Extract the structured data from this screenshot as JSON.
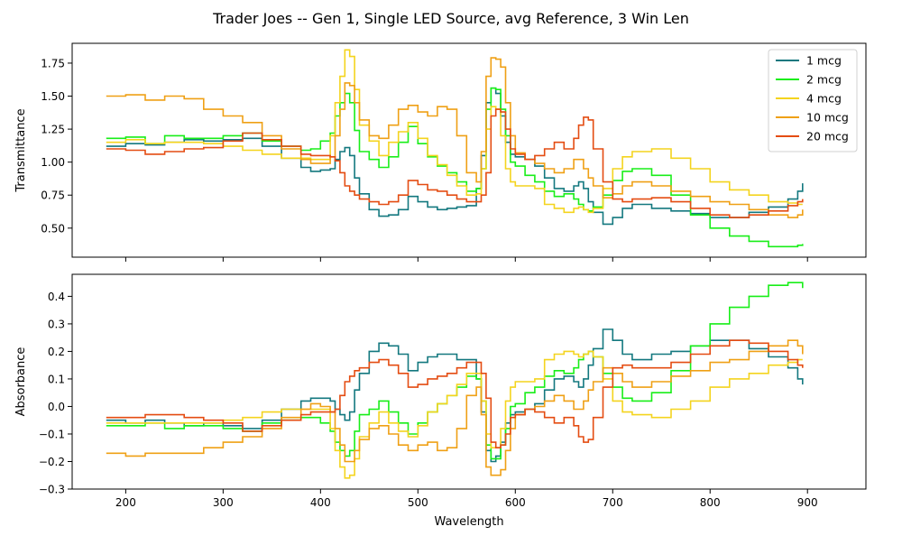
{
  "title": "Trader Joes -- Gen 1, Single LED Source, avg Reference, 3 Win Len",
  "colors": {
    "1 mcg": "#13787f",
    "2 mcg": "#18ee18",
    "4 mcg": "#f4d41e",
    "10 mcg": "#efa015",
    "20 mcg": "#e44c12"
  },
  "chart_data": [
    {
      "type": "line",
      "ylabel": "Transmittance",
      "xlabel": "",
      "xlim": [
        145,
        960
      ],
      "ylim": [
        0.28,
        1.9
      ],
      "xticks": [
        200,
        300,
        400,
        500,
        600,
        700,
        800,
        900
      ],
      "yticks": [
        0.5,
        0.75,
        1.0,
        1.25,
        1.5,
        1.75
      ],
      "ytick_labels": [
        "0.50",
        "0.75",
        "1.00",
        "1.25",
        "1.50",
        "1.75"
      ],
      "show_xtick_labels": false,
      "grid": false,
      "legend": "top-right",
      "x": [
        180,
        200,
        220,
        240,
        260,
        280,
        300,
        320,
        340,
        360,
        380,
        390,
        400,
        410,
        415,
        420,
        425,
        430,
        435,
        440,
        450,
        460,
        470,
        480,
        490,
        500,
        510,
        520,
        530,
        540,
        550,
        560,
        565,
        570,
        575,
        580,
        585,
        590,
        595,
        600,
        610,
        620,
        630,
        640,
        650,
        660,
        665,
        670,
        675,
        680,
        690,
        700,
        710,
        720,
        740,
        760,
        780,
        800,
        820,
        840,
        860,
        880,
        890,
        895
      ],
      "series": [
        {
          "name": "1 mcg",
          "values": [
            1.12,
            1.14,
            1.13,
            1.15,
            1.17,
            1.16,
            1.17,
            1.18,
            1.12,
            1.03,
            0.96,
            0.93,
            0.94,
            0.95,
            1.02,
            1.08,
            1.11,
            1.05,
            0.88,
            0.76,
            0.64,
            0.59,
            0.6,
            0.64,
            0.74,
            0.7,
            0.66,
            0.64,
            0.65,
            0.66,
            0.67,
            0.8,
            1.05,
            1.45,
            1.56,
            1.52,
            1.35,
            1.15,
            1.06,
            1.04,
            1.02,
            0.97,
            0.88,
            0.8,
            0.78,
            0.82,
            0.85,
            0.8,
            0.7,
            0.62,
            0.53,
            0.58,
            0.65,
            0.68,
            0.65,
            0.63,
            0.61,
            0.58,
            0.58,
            0.62,
            0.66,
            0.72,
            0.78,
            0.84
          ]
        },
        {
          "name": "2 mcg",
          "values": [
            1.18,
            1.19,
            1.14,
            1.2,
            1.18,
            1.18,
            1.2,
            1.22,
            1.16,
            1.12,
            1.09,
            1.1,
            1.16,
            1.22,
            1.35,
            1.45,
            1.52,
            1.45,
            1.24,
            1.08,
            1.02,
            0.96,
            1.04,
            1.15,
            1.27,
            1.14,
            1.04,
            0.97,
            0.92,
            0.85,
            0.78,
            0.8,
            0.95,
            1.4,
            1.56,
            1.55,
            1.4,
            1.2,
            1.0,
            0.97,
            0.9,
            0.85,
            0.78,
            0.74,
            0.76,
            0.72,
            0.68,
            0.64,
            0.63,
            0.66,
            0.75,
            0.86,
            0.93,
            0.95,
            0.9,
            0.75,
            0.6,
            0.5,
            0.44,
            0.4,
            0.36,
            0.36,
            0.37,
            0.38
          ]
        },
        {
          "name": "4 mcg",
          "values": [
            1.15,
            1.17,
            1.14,
            1.15,
            1.15,
            1.14,
            1.12,
            1.09,
            1.06,
            1.03,
            1.03,
            1.02,
            1.02,
            1.2,
            1.45,
            1.65,
            1.85,
            1.8,
            1.55,
            1.28,
            1.16,
            1.05,
            1.15,
            1.23,
            1.3,
            1.18,
            1.05,
            0.98,
            0.9,
            0.82,
            0.75,
            0.76,
            0.95,
            1.25,
            1.42,
            1.4,
            1.2,
            0.95,
            0.85,
            0.82,
            0.82,
            0.8,
            0.68,
            0.65,
            0.62,
            0.65,
            0.66,
            0.64,
            0.62,
            0.65,
            0.8,
            0.95,
            1.04,
            1.08,
            1.1,
            1.03,
            0.95,
            0.85,
            0.79,
            0.75,
            0.7,
            0.69,
            0.68,
            0.68
          ]
        },
        {
          "name": "10 mcg",
          "values": [
            1.5,
            1.51,
            1.47,
            1.5,
            1.48,
            1.4,
            1.35,
            1.3,
            1.2,
            1.1,
            1.02,
            0.99,
            0.99,
            1.04,
            1.2,
            1.4,
            1.6,
            1.58,
            1.45,
            1.32,
            1.2,
            1.18,
            1.28,
            1.4,
            1.43,
            1.38,
            1.35,
            1.42,
            1.4,
            1.2,
            0.92,
            0.85,
            1.08,
            1.65,
            1.79,
            1.78,
            1.72,
            1.45,
            1.2,
            1.07,
            1.02,
            0.99,
            0.95,
            0.92,
            0.95,
            1.02,
            1.02,
            0.95,
            0.88,
            0.82,
            0.73,
            0.76,
            0.82,
            0.85,
            0.82,
            0.78,
            0.74,
            0.7,
            0.68,
            0.64,
            0.6,
            0.58,
            0.6,
            0.64
          ]
        },
        {
          "name": "20 mcg",
          "values": [
            1.1,
            1.09,
            1.06,
            1.08,
            1.1,
            1.11,
            1.16,
            1.22,
            1.17,
            1.12,
            1.06,
            1.05,
            1.05,
            1.04,
            1.01,
            0.92,
            0.82,
            0.78,
            0.75,
            0.72,
            0.7,
            0.68,
            0.7,
            0.75,
            0.86,
            0.83,
            0.79,
            0.78,
            0.75,
            0.72,
            0.7,
            0.7,
            0.75,
            0.92,
            1.35,
            1.4,
            1.38,
            1.25,
            1.1,
            1.06,
            1.02,
            1.05,
            1.1,
            1.15,
            1.1,
            1.18,
            1.28,
            1.34,
            1.32,
            1.1,
            0.85,
            0.72,
            0.7,
            0.72,
            0.73,
            0.7,
            0.65,
            0.6,
            0.58,
            0.6,
            0.63,
            0.67,
            0.7,
            0.72
          ]
        }
      ]
    },
    {
      "type": "line",
      "ylabel": "Absorbance",
      "xlabel": "Wavelength",
      "xlim": [
        145,
        960
      ],
      "ylim": [
        -0.3,
        0.48
      ],
      "xticks": [
        200,
        300,
        400,
        500,
        600,
        700,
        800,
        900
      ],
      "yticks": [
        -0.3,
        -0.2,
        -0.1,
        0.0,
        0.1,
        0.2,
        0.3,
        0.4
      ],
      "ytick_labels": [
        "−0.3",
        "−0.2",
        "−0.1",
        "0.0",
        "0.1",
        "0.2",
        "0.3",
        "0.4"
      ],
      "show_xtick_labels": true,
      "grid": false,
      "legend": "none",
      "x": [
        180,
        200,
        220,
        240,
        260,
        280,
        300,
        320,
        340,
        360,
        380,
        390,
        400,
        410,
        415,
        420,
        425,
        430,
        435,
        440,
        450,
        460,
        470,
        480,
        490,
        500,
        510,
        520,
        530,
        540,
        550,
        560,
        565,
        570,
        575,
        580,
        585,
        590,
        595,
        600,
        610,
        620,
        630,
        640,
        650,
        660,
        665,
        670,
        675,
        680,
        690,
        700,
        710,
        720,
        740,
        760,
        780,
        800,
        820,
        840,
        860,
        880,
        890,
        895
      ],
      "series": [
        {
          "name": "1 mcg",
          "values": [
            -0.05,
            -0.06,
            -0.05,
            -0.06,
            -0.07,
            -0.06,
            -0.07,
            -0.08,
            -0.05,
            -0.01,
            0.02,
            0.03,
            0.03,
            0.02,
            -0.01,
            -0.03,
            -0.05,
            -0.02,
            0.06,
            0.12,
            0.2,
            0.23,
            0.22,
            0.19,
            0.13,
            0.16,
            0.18,
            0.19,
            0.19,
            0.17,
            0.17,
            0.1,
            -0.02,
            -0.16,
            -0.2,
            -0.18,
            -0.13,
            -0.06,
            -0.03,
            -0.02,
            -0.01,
            0.01,
            0.06,
            0.1,
            0.11,
            0.09,
            0.07,
            0.1,
            0.15,
            0.21,
            0.28,
            0.24,
            0.19,
            0.17,
            0.19,
            0.2,
            0.22,
            0.24,
            0.24,
            0.21,
            0.18,
            0.14,
            0.1,
            0.08
          ]
        },
        {
          "name": "2 mcg",
          "values": [
            -0.07,
            -0.07,
            -0.06,
            -0.08,
            -0.07,
            -0.07,
            -0.08,
            -0.09,
            -0.06,
            -0.05,
            -0.04,
            -0.04,
            -0.06,
            -0.09,
            -0.13,
            -0.16,
            -0.18,
            -0.16,
            -0.09,
            -0.03,
            -0.01,
            0.02,
            -0.02,
            -0.06,
            -0.1,
            -0.06,
            -0.02,
            0.01,
            0.04,
            0.07,
            0.11,
            0.1,
            0.02,
            -0.14,
            -0.19,
            -0.19,
            -0.14,
            -0.08,
            0.0,
            0.01,
            0.05,
            0.07,
            0.11,
            0.13,
            0.12,
            0.14,
            0.17,
            0.19,
            0.2,
            0.18,
            0.12,
            0.07,
            0.03,
            0.02,
            0.05,
            0.13,
            0.22,
            0.3,
            0.36,
            0.4,
            0.44,
            0.45,
            0.45,
            0.43
          ]
        },
        {
          "name": "4 mcg",
          "values": [
            -0.06,
            -0.06,
            -0.06,
            -0.06,
            -0.06,
            -0.06,
            -0.05,
            -0.04,
            -0.02,
            -0.01,
            -0.01,
            -0.01,
            -0.01,
            -0.08,
            -0.16,
            -0.22,
            -0.26,
            -0.25,
            -0.19,
            -0.11,
            -0.06,
            -0.02,
            -0.06,
            -0.09,
            -0.11,
            -0.07,
            -0.02,
            0.01,
            0.04,
            0.08,
            0.12,
            0.12,
            0.02,
            -0.1,
            -0.15,
            -0.15,
            -0.08,
            0.02,
            0.07,
            0.09,
            0.09,
            0.1,
            0.17,
            0.19,
            0.2,
            0.19,
            0.18,
            0.19,
            0.2,
            0.18,
            0.1,
            0.02,
            -0.02,
            -0.03,
            -0.04,
            -0.01,
            0.02,
            0.07,
            0.1,
            0.12,
            0.15,
            0.16,
            0.17,
            0.17
          ]
        },
        {
          "name": "10 mcg",
          "values": [
            -0.17,
            -0.18,
            -0.17,
            -0.17,
            -0.17,
            -0.15,
            -0.13,
            -0.11,
            -0.08,
            -0.04,
            -0.01,
            0.01,
            0.0,
            -0.02,
            -0.08,
            -0.14,
            -0.2,
            -0.2,
            -0.16,
            -0.12,
            -0.08,
            -0.07,
            -0.1,
            -0.14,
            -0.16,
            -0.14,
            -0.13,
            -0.16,
            -0.15,
            -0.08,
            0.04,
            0.07,
            -0.03,
            -0.22,
            -0.25,
            -0.25,
            -0.23,
            -0.16,
            -0.08,
            -0.03,
            -0.01,
            0.0,
            0.02,
            0.04,
            0.02,
            -0.01,
            -0.01,
            0.02,
            0.06,
            0.09,
            0.14,
            0.12,
            0.09,
            0.07,
            0.09,
            0.11,
            0.13,
            0.16,
            0.17,
            0.2,
            0.22,
            0.24,
            0.22,
            0.19
          ]
        },
        {
          "name": "20 mcg",
          "values": [
            -0.04,
            -0.04,
            -0.03,
            -0.03,
            -0.04,
            -0.05,
            -0.06,
            -0.09,
            -0.07,
            -0.05,
            -0.03,
            -0.02,
            -0.02,
            -0.02,
            -0.01,
            0.04,
            0.09,
            0.11,
            0.13,
            0.14,
            0.16,
            0.17,
            0.15,
            0.12,
            0.07,
            0.08,
            0.1,
            0.11,
            0.12,
            0.14,
            0.16,
            0.16,
            0.12,
            0.03,
            -0.13,
            -0.15,
            -0.14,
            -0.1,
            -0.04,
            -0.03,
            -0.01,
            -0.02,
            -0.04,
            -0.06,
            -0.04,
            -0.07,
            -0.11,
            -0.13,
            -0.12,
            -0.04,
            0.07,
            0.14,
            0.15,
            0.14,
            0.14,
            0.16,
            0.19,
            0.22,
            0.24,
            0.23,
            0.2,
            0.17,
            0.15,
            0.14
          ]
        }
      ]
    }
  ]
}
